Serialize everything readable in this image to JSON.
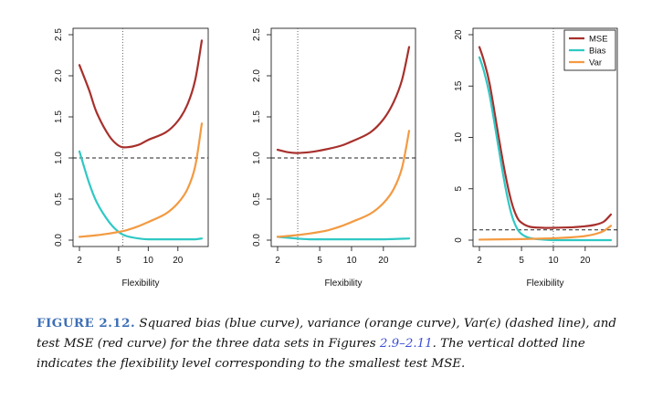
{
  "chart_data": [
    {
      "type": "line",
      "xlabel": "Flexibility",
      "x_scale": "log",
      "xlim": [
        2,
        35
      ],
      "xticks": [
        2,
        5,
        10,
        20
      ],
      "ylim": [
        0,
        2.5
      ],
      "yticks": [
        "0.0",
        "0.5",
        "1.0",
        "1.5",
        "2.0",
        "2.5"
      ],
      "hline_y": 1.0,
      "vline_x": 5.5,
      "legend": null,
      "series": [
        {
          "color": "#a7302c",
          "x": [
            2,
            2.5,
            3,
            4,
            5,
            6,
            8,
            10,
            15,
            20,
            25,
            30,
            35
          ],
          "y": [
            2.13,
            1.83,
            1.55,
            1.27,
            1.15,
            1.13,
            1.16,
            1.22,
            1.31,
            1.45,
            1.65,
            1.95,
            2.43
          ]
        },
        {
          "color": "#2fc8c4",
          "x": [
            2,
            2.5,
            3,
            4,
            5,
            6,
            8,
            10,
            15,
            20,
            25,
            30,
            35
          ],
          "y": [
            1.08,
            0.7,
            0.46,
            0.22,
            0.1,
            0.05,
            0.02,
            0.01,
            0.01,
            0.01,
            0.01,
            0.01,
            0.02
          ]
        },
        {
          "color": "#f39a42",
          "x": [
            2,
            3,
            4,
            5,
            6,
            8,
            10,
            15,
            20,
            25,
            30,
            35
          ],
          "y": [
            0.04,
            0.06,
            0.08,
            0.1,
            0.12,
            0.17,
            0.22,
            0.32,
            0.45,
            0.62,
            0.9,
            1.42
          ]
        }
      ]
    },
    {
      "type": "line",
      "xlabel": "Flexibility",
      "x_scale": "log",
      "xlim": [
        2,
        35
      ],
      "xticks": [
        2,
        5,
        10,
        20
      ],
      "ylim": [
        0,
        2.5
      ],
      "yticks": [
        "0.0",
        "0.5",
        "1.0",
        "1.5",
        "2.0",
        "2.5"
      ],
      "hline_y": 1.0,
      "vline_x": 3.1,
      "legend": null,
      "series": [
        {
          "color": "#a7302c",
          "x": [
            2,
            2.5,
            3,
            4,
            5,
            6,
            8,
            10,
            15,
            20,
            25,
            30,
            35
          ],
          "y": [
            1.1,
            1.07,
            1.06,
            1.07,
            1.09,
            1.11,
            1.15,
            1.2,
            1.31,
            1.47,
            1.68,
            1.95,
            2.35
          ]
        },
        {
          "color": "#2fc8c4",
          "x": [
            2,
            3,
            4,
            5,
            8,
            10,
            20,
            35
          ],
          "y": [
            0.04,
            0.02,
            0.01,
            0.01,
            0.01,
            0.01,
            0.01,
            0.02
          ]
        },
        {
          "color": "#f39a42",
          "x": [
            2,
            3,
            4,
            5,
            6,
            8,
            10,
            15,
            20,
            25,
            30,
            35
          ],
          "y": [
            0.04,
            0.06,
            0.08,
            0.1,
            0.12,
            0.17,
            0.22,
            0.32,
            0.45,
            0.62,
            0.88,
            1.33
          ]
        }
      ]
    },
    {
      "type": "line",
      "xlabel": "Flexibility",
      "x_scale": "log",
      "xlim": [
        2,
        35
      ],
      "xticks": [
        2,
        5,
        10,
        20
      ],
      "ylim": [
        0,
        20
      ],
      "yticks": [
        "0",
        "5",
        "10",
        "15",
        "20"
      ],
      "hline_y": 1.0,
      "vline_x": 10,
      "legend": {
        "placement": "top-right",
        "entries": [
          "MSE",
          "Bias",
          "Var"
        ]
      },
      "series": [
        {
          "color": "#a7302c",
          "x": [
            2,
            2.2,
            2.5,
            3,
            3.5,
            4,
            4.5,
            5,
            6,
            8,
            10,
            15,
            20,
            25,
            30,
            35
          ],
          "y": [
            18.8,
            17.5,
            15.2,
            10.4,
            6.5,
            3.8,
            2.3,
            1.7,
            1.3,
            1.2,
            1.2,
            1.25,
            1.35,
            1.5,
            1.8,
            2.5
          ]
        },
        {
          "color": "#2fc8c4",
          "x": [
            2,
            2.2,
            2.5,
            3,
            3.5,
            4,
            4.5,
            5,
            6,
            8,
            10,
            15,
            20,
            35
          ],
          "y": [
            17.8,
            16.5,
            14.1,
            9.3,
            5.3,
            2.6,
            1.2,
            0.6,
            0.2,
            0.05,
            0.0,
            0.0,
            0.0,
            0.0
          ]
        },
        {
          "color": "#f39a42",
          "x": [
            2,
            5,
            10,
            15,
            20,
            25,
            30,
            35
          ],
          "y": [
            0.05,
            0.1,
            0.18,
            0.28,
            0.4,
            0.6,
            0.9,
            1.4
          ]
        }
      ]
    }
  ],
  "caption": {
    "label": "FIGURE 2.12.",
    "text_1": " Squared bias (blue curve), variance (orange curve), Var(",
    "epsilon": "ϵ",
    "text_2": ") (dashed line), and test MSE (red curve) for the three data sets in Figures ",
    "link": "2.9–2.11",
    "text_3": ". The vertical dotted line indicates the flexibility level corresponding to the smallest test MSE."
  }
}
